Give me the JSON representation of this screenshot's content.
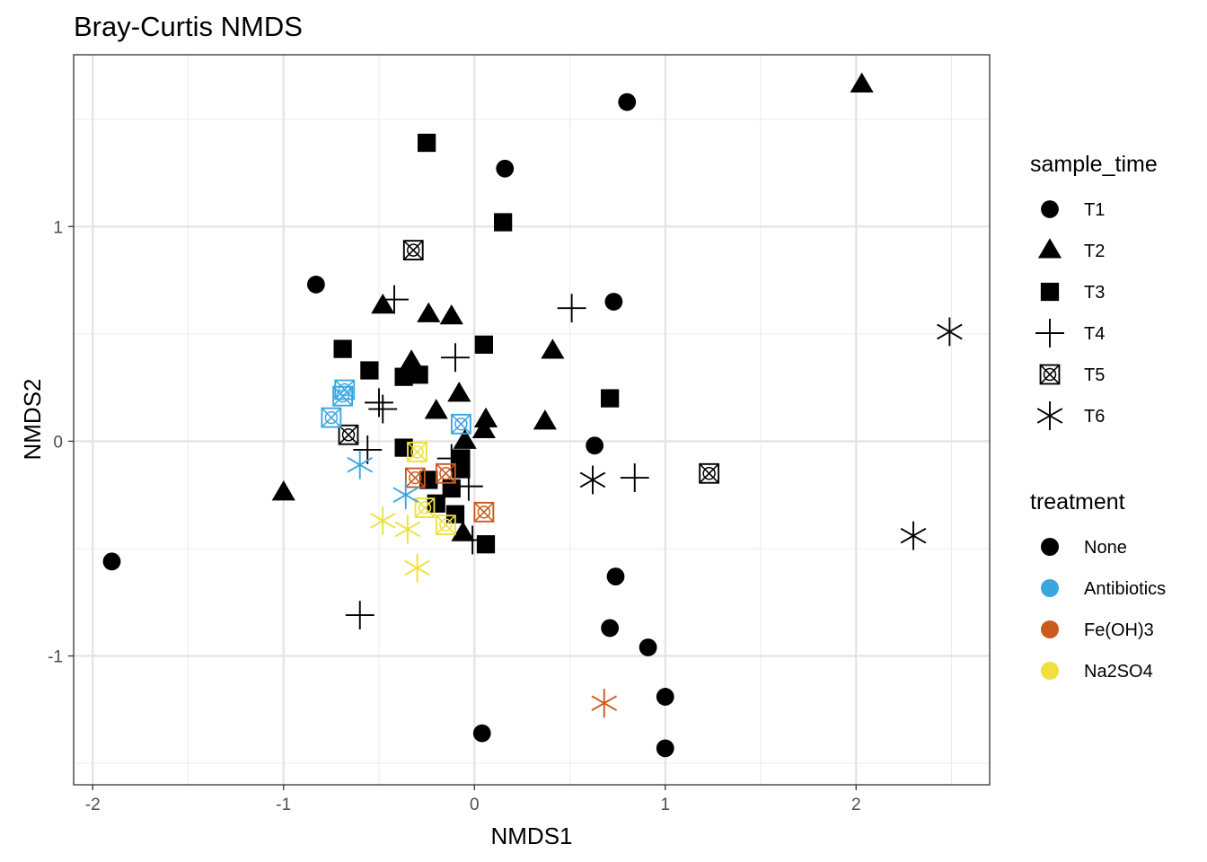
{
  "chart_data": {
    "type": "scatter",
    "title": "Bray-Curtis NMDS",
    "xlabel": "NMDS1",
    "ylabel": "NMDS2",
    "xlim": [
      -2.1,
      2.7
    ],
    "ylim": [
      -1.6,
      1.8
    ],
    "xticks": [
      -2,
      -1,
      0,
      1,
      2
    ],
    "yticks": [
      -1,
      0,
      1
    ],
    "grid": true,
    "legend_position": "right",
    "legends": [
      {
        "title": "sample_time",
        "kind": "shape",
        "items": [
          {
            "label": "T1",
            "shape": "circle"
          },
          {
            "label": "T2",
            "shape": "triangle"
          },
          {
            "label": "T3",
            "shape": "square"
          },
          {
            "label": "T4",
            "shape": "plus"
          },
          {
            "label": "T5",
            "shape": "boxx"
          },
          {
            "label": "T6",
            "shape": "star"
          }
        ]
      },
      {
        "title": "treatment",
        "kind": "color",
        "items": [
          {
            "label": "None",
            "color": "#000000"
          },
          {
            "label": "Antibiotics",
            "color": "#3AA6E0"
          },
          {
            "label": "Fe(OH)3",
            "color": "#CC5A1C"
          },
          {
            "label": "Na2SO4",
            "color": "#EDE13A"
          }
        ]
      }
    ],
    "points": [
      {
        "x": 0.8,
        "y": 1.58,
        "time": "T1",
        "treatment": "None"
      },
      {
        "x": 0.16,
        "y": 1.27,
        "time": "T1",
        "treatment": "None"
      },
      {
        "x": -0.83,
        "y": 0.73,
        "time": "T1",
        "treatment": "None"
      },
      {
        "x": 0.73,
        "y": 0.65,
        "time": "T1",
        "treatment": "None"
      },
      {
        "x": 0.63,
        "y": -0.02,
        "time": "T1",
        "treatment": "None"
      },
      {
        "x": -1.9,
        "y": -0.56,
        "time": "T1",
        "treatment": "None"
      },
      {
        "x": 0.74,
        "y": -0.63,
        "time": "T1",
        "treatment": "None"
      },
      {
        "x": 0.71,
        "y": -0.87,
        "time": "T1",
        "treatment": "None"
      },
      {
        "x": 0.91,
        "y": -0.96,
        "time": "T1",
        "treatment": "None"
      },
      {
        "x": 1.0,
        "y": -1.19,
        "time": "T1",
        "treatment": "None"
      },
      {
        "x": 0.04,
        "y": -1.36,
        "time": "T1",
        "treatment": "None"
      },
      {
        "x": 1.0,
        "y": -1.43,
        "time": "T1",
        "treatment": "None"
      },
      {
        "x": 2.03,
        "y": 1.66,
        "time": "T2",
        "treatment": "None"
      },
      {
        "x": -0.48,
        "y": 0.63,
        "time": "T2",
        "treatment": "None"
      },
      {
        "x": -0.24,
        "y": 0.59,
        "time": "T2",
        "treatment": "None"
      },
      {
        "x": -0.12,
        "y": 0.58,
        "time": "T2",
        "treatment": "None"
      },
      {
        "x": 0.41,
        "y": 0.42,
        "time": "T2",
        "treatment": "None"
      },
      {
        "x": -0.33,
        "y": 0.37,
        "time": "T2",
        "treatment": "None"
      },
      {
        "x": -0.08,
        "y": 0.22,
        "time": "T2",
        "treatment": "None"
      },
      {
        "x": -0.2,
        "y": 0.14,
        "time": "T2",
        "treatment": "None"
      },
      {
        "x": 0.37,
        "y": 0.09,
        "time": "T2",
        "treatment": "None"
      },
      {
        "x": 0.06,
        "y": 0.1,
        "time": "T2",
        "treatment": "None"
      },
      {
        "x": 0.05,
        "y": 0.05,
        "time": "T2",
        "treatment": "None"
      },
      {
        "x": -0.05,
        "y": 0.0,
        "time": "T2",
        "treatment": "None"
      },
      {
        "x": -1.0,
        "y": -0.24,
        "time": "T2",
        "treatment": "None"
      },
      {
        "x": -0.06,
        "y": -0.43,
        "time": "T2",
        "treatment": "None"
      },
      {
        "x": -0.25,
        "y": 1.39,
        "time": "T3",
        "treatment": "None"
      },
      {
        "x": 0.15,
        "y": 1.02,
        "time": "T3",
        "treatment": "None"
      },
      {
        "x": -0.69,
        "y": 0.43,
        "time": "T3",
        "treatment": "None"
      },
      {
        "x": 0.05,
        "y": 0.45,
        "time": "T3",
        "treatment": "None"
      },
      {
        "x": -0.55,
        "y": 0.33,
        "time": "T3",
        "treatment": "None"
      },
      {
        "x": -0.37,
        "y": 0.3,
        "time": "T3",
        "treatment": "None"
      },
      {
        "x": -0.29,
        "y": 0.31,
        "time": "T3",
        "treatment": "None"
      },
      {
        "x": 0.71,
        "y": 0.2,
        "time": "T3",
        "treatment": "None"
      },
      {
        "x": -0.37,
        "y": -0.03,
        "time": "T3",
        "treatment": "None"
      },
      {
        "x": -0.07,
        "y": -0.08,
        "time": "T3",
        "treatment": "None"
      },
      {
        "x": -0.24,
        "y": -0.18,
        "time": "T3",
        "treatment": "None"
      },
      {
        "x": -0.07,
        "y": -0.13,
        "time": "T3",
        "treatment": "None"
      },
      {
        "x": -0.12,
        "y": -0.22,
        "time": "T3",
        "treatment": "None"
      },
      {
        "x": -0.2,
        "y": -0.29,
        "time": "T3",
        "treatment": "None"
      },
      {
        "x": -0.1,
        "y": -0.34,
        "time": "T3",
        "treatment": "None"
      },
      {
        "x": 0.06,
        "y": -0.48,
        "time": "T3",
        "treatment": "None"
      },
      {
        "x": -0.42,
        "y": 0.66,
        "time": "T4",
        "treatment": "None"
      },
      {
        "x": 0.51,
        "y": 0.62,
        "time": "T4",
        "treatment": "None"
      },
      {
        "x": -0.1,
        "y": 0.39,
        "time": "T4",
        "treatment": "None"
      },
      {
        "x": -0.5,
        "y": 0.18,
        "time": "T4",
        "treatment": "None"
      },
      {
        "x": -0.48,
        "y": 0.15,
        "time": "T4",
        "treatment": "None"
      },
      {
        "x": -0.56,
        "y": -0.04,
        "time": "T4",
        "treatment": "None"
      },
      {
        "x": 0.84,
        "y": -0.17,
        "time": "T4",
        "treatment": "None"
      },
      {
        "x": -0.12,
        "y": -0.08,
        "time": "T4",
        "treatment": "None"
      },
      {
        "x": -0.03,
        "y": -0.21,
        "time": "T4",
        "treatment": "None"
      },
      {
        "x": -0.01,
        "y": -0.46,
        "time": "T4",
        "treatment": "None"
      },
      {
        "x": -0.6,
        "y": -0.81,
        "time": "T4",
        "treatment": "None"
      },
      {
        "x": -0.32,
        "y": 0.89,
        "time": "T5",
        "treatment": "None"
      },
      {
        "x": -0.66,
        "y": 0.03,
        "time": "T5",
        "treatment": "None"
      },
      {
        "x": 1.23,
        "y": -0.15,
        "time": "T5",
        "treatment": "None"
      },
      {
        "x": -0.68,
        "y": 0.24,
        "time": "T5",
        "treatment": "Antibiotics"
      },
      {
        "x": -0.69,
        "y": 0.21,
        "time": "T5",
        "treatment": "Antibiotics"
      },
      {
        "x": -0.75,
        "y": 0.11,
        "time": "T5",
        "treatment": "Antibiotics"
      },
      {
        "x": -0.07,
        "y": 0.08,
        "time": "T5",
        "treatment": "Antibiotics"
      },
      {
        "x": -0.31,
        "y": -0.17,
        "time": "T5",
        "treatment": "Fe(OH)3"
      },
      {
        "x": -0.15,
        "y": -0.15,
        "time": "T5",
        "treatment": "Fe(OH)3"
      },
      {
        "x": 0.05,
        "y": -0.33,
        "time": "T5",
        "treatment": "Fe(OH)3"
      },
      {
        "x": -0.3,
        "y": -0.05,
        "time": "T5",
        "treatment": "Na2SO4"
      },
      {
        "x": -0.26,
        "y": -0.31,
        "time": "T5",
        "treatment": "Na2SO4"
      },
      {
        "x": -0.15,
        "y": -0.39,
        "time": "T5",
        "treatment": "Na2SO4"
      },
      {
        "x": 2.49,
        "y": 0.51,
        "time": "T6",
        "treatment": "None"
      },
      {
        "x": 0.62,
        "y": -0.18,
        "time": "T6",
        "treatment": "None"
      },
      {
        "x": 2.3,
        "y": -0.44,
        "time": "T6",
        "treatment": "None"
      },
      {
        "x": -0.6,
        "y": -0.11,
        "time": "T6",
        "treatment": "Antibiotics"
      },
      {
        "x": -0.36,
        "y": -0.25,
        "time": "T6",
        "treatment": "Antibiotics"
      },
      {
        "x": 0.68,
        "y": -1.22,
        "time": "T6",
        "treatment": "Fe(OH)3"
      },
      {
        "x": -0.48,
        "y": -0.37,
        "time": "T6",
        "treatment": "Na2SO4"
      },
      {
        "x": -0.35,
        "y": -0.41,
        "time": "T6",
        "treatment": "Na2SO4"
      },
      {
        "x": -0.3,
        "y": -0.59,
        "time": "T6",
        "treatment": "Na2SO4"
      }
    ]
  }
}
